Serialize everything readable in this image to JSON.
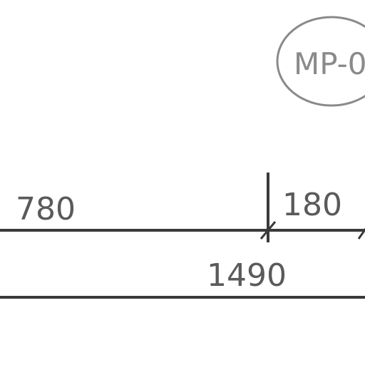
{
  "drawing": {
    "tag": {
      "label": "MP-0"
    },
    "dimensions": {
      "segment_left": "780",
      "segment_right": "180",
      "overall": "1490"
    },
    "colors": {
      "dimension_line": "#3a3a3a",
      "dimension_text": "#5a5a5a",
      "tag_outline": "#8a8a8a",
      "tag_text": "#8a8a8a",
      "background": "#ffffff"
    }
  }
}
